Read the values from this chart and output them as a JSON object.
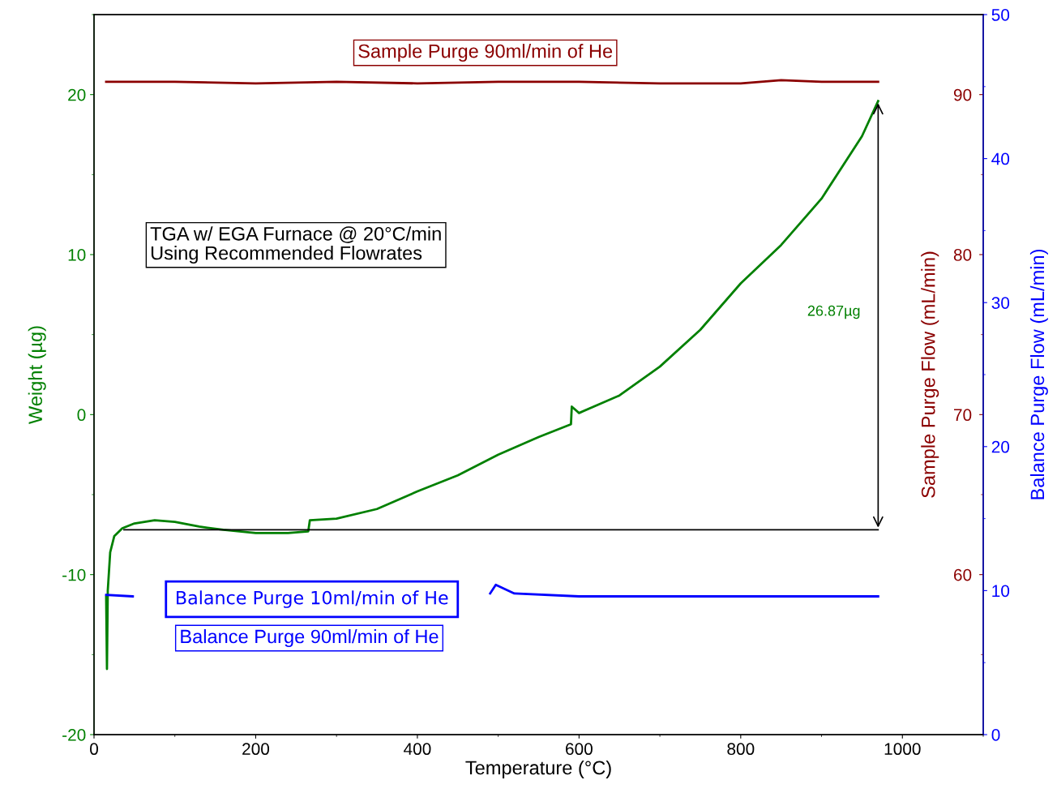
{
  "chart_data": {
    "type": "line",
    "xlabel": "Temperature (°C)",
    "ylabel": "Weight (µg)",
    "y2label": "Sample Purge Flow (mL/min)",
    "y3label": "Balance Purge Flow (mL/min)",
    "xlim": [
      0,
      1100
    ],
    "xticks": [
      0,
      200,
      400,
      600,
      800,
      1000
    ],
    "ylim": [
      -20,
      25
    ],
    "yticks": [
      -20,
      -10,
      0,
      10,
      20
    ],
    "y2lim": [
      50,
      95
    ],
    "y2ticks": [
      60,
      70,
      80,
      90
    ],
    "y3lim": [
      0,
      50
    ],
    "y3ticks": [
      0,
      10,
      20,
      30,
      40,
      50
    ],
    "grid": false,
    "legend": false,
    "series": [
      {
        "color": "#008000",
        "x": [
          15,
          16,
          17,
          20,
          25,
          35,
          50,
          75,
          100,
          130,
          160,
          200,
          240,
          265,
          267,
          300,
          350,
          400,
          450,
          500,
          550,
          590,
          591,
          600,
          650,
          700,
          750,
          800,
          850,
          900,
          950,
          970
        ],
        "values": [
          -11.4,
          -15.9,
          -11,
          -8.6,
          -7.6,
          -7.1,
          -6.8,
          -6.6,
          -6.7,
          -7.0,
          -7.2,
          -7.4,
          -7.4,
          -7.3,
          -6.6,
          -6.5,
          -5.9,
          -4.8,
          -3.8,
          -2.5,
          -1.4,
          -0.6,
          0.5,
          0.1,
          1.2,
          3.0,
          5.3,
          8.2,
          10.6,
          13.5,
          17.4,
          19.6
        ]
      },
      {
        "color": "#000000",
        "x": [
          37,
          970
        ],
        "values": [
          -7.2,
          -7.2
        ]
      },
      {
        "color": "#8b0000",
        "axis": "y2",
        "x": [
          15,
          100,
          200,
          300,
          400,
          500,
          600,
          700,
          800,
          850,
          900,
          970
        ],
        "values": [
          90.8,
          90.8,
          90.7,
          90.8,
          90.7,
          90.8,
          90.8,
          90.7,
          90.7,
          90.9,
          90.8,
          90.8
        ]
      },
      {
        "color": "#0000ff",
        "axis": "y3",
        "x": [
          15,
          48,
          250,
          490,
          497,
          520,
          600,
          700,
          800,
          900,
          970
        ],
        "values": [
          9.7,
          9.6,
          null,
          9.8,
          10.4,
          9.8,
          9.6,
          9.6,
          9.6,
          9.6,
          9.6
        ]
      }
    ],
    "annotations": [
      "Sample Purge 90ml/min of He",
      "TGA w/ EGA Furnace @ 20°C/min\nUsing Recommended Flowrates",
      "Balance Purge 10ml/min of He",
      "Balance Purge 90ml/min of He",
      "26.87µg"
    ]
  }
}
